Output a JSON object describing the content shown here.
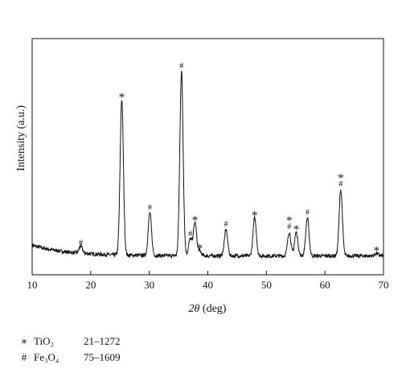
{
  "chart_data": {
    "type": "line",
    "xlabel": "2θ (deg)",
    "ylabel": "Intensity (a.u.)",
    "xlim": [
      10,
      70
    ],
    "ylim": [
      0,
      100
    ],
    "x_ticks": [
      10,
      20,
      30,
      40,
      50,
      60,
      70
    ],
    "y_ticks_shown": false,
    "grid": false,
    "series_color": "#111111",
    "baseline": 8,
    "peaks": [
      {
        "x": 18.3,
        "y": 11,
        "marker": "#"
      },
      {
        "x": 25.3,
        "y": 74,
        "marker": "*"
      },
      {
        "x": 30.1,
        "y": 26,
        "marker": "#"
      },
      {
        "x": 35.5,
        "y": 86,
        "marker": "#"
      },
      {
        "x": 37.0,
        "y": 15,
        "marker": "#"
      },
      {
        "x": 37.8,
        "y": 22,
        "marker": "*"
      },
      {
        "x": 38.6,
        "y": 10,
        "marker": "*"
      },
      {
        "x": 43.1,
        "y": 19,
        "marker": "#"
      },
      {
        "x": 48.0,
        "y": 24,
        "marker": "*"
      },
      {
        "x": 53.9,
        "y": 18,
        "marker": "*#"
      },
      {
        "x": 55.1,
        "y": 18,
        "marker": "*"
      },
      {
        "x": 57.0,
        "y": 24,
        "marker": "#"
      },
      {
        "x": 62.7,
        "y": 36,
        "marker": "*#"
      },
      {
        "x": 68.8,
        "y": 9,
        "marker": "*"
      }
    ]
  },
  "legend": [
    {
      "symbol": "∗",
      "name": "TiO₂",
      "code": "21–1272"
    },
    {
      "symbol": "#",
      "name": "Fe₃O₄",
      "code": "75–1609"
    }
  ]
}
